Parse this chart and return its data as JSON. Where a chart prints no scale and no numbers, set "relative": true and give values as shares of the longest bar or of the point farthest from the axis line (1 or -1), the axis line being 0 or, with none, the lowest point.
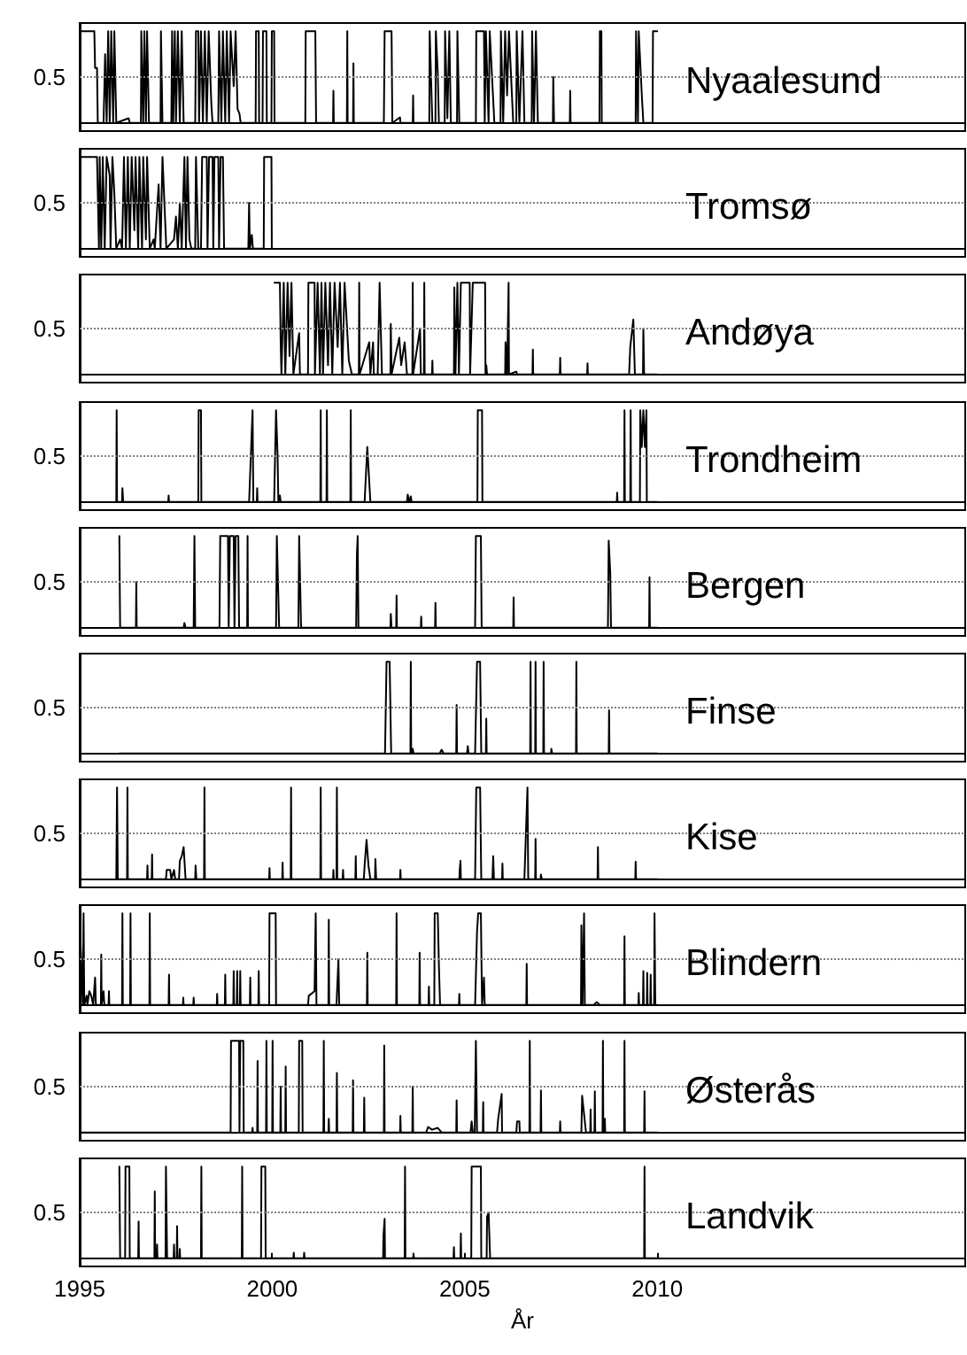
{
  "chart_data": [
    {
      "type": "line",
      "title": "Nyaalesund",
      "color": "#000000",
      "xlim": [
        1995,
        2018
      ],
      "xticks": [
        1995,
        2000,
        2005,
        2010
      ],
      "relative": true,
      "ref_lines": [
        {
          "axis": "y",
          "value": 0.5,
          "label": "0.5",
          "color": "#808080",
          "line_style": "dotted"
        }
      ],
      "tick_labels": "y",
      "x": [
        1995.0,
        1995.38,
        1995.4,
        1995.45,
        1995.47,
        1995.62,
        1995.66,
        1995.7,
        1995.74,
        1995.78,
        1995.82,
        1995.87,
        1995.9,
        1995.95,
        1996.27,
        1996.3,
        1996.59,
        1996.6,
        1996.65,
        1996.68,
        1996.72,
        1996.75,
        1996.8,
        1997.1,
        1997.11,
        1997.14,
        1997.15,
        1997.38,
        1997.4,
        1997.43,
        1997.47,
        1997.5,
        1997.55,
        1997.6,
        1997.65,
        1997.7,
        1998.0,
        1998.02,
        1998.08,
        1998.1,
        1998.15,
        1998.2,
        1998.25,
        1998.3,
        1998.35,
        1998.42,
        1998.45,
        1998.6,
        1998.62,
        1998.68,
        1998.72,
        1998.78,
        1998.82,
        1998.88,
        1998.92,
        1999.0,
        1999.05,
        1999.1,
        1999.15,
        1999.18,
        1999.57,
        1999.58,
        1999.65,
        1999.66,
        1999.75,
        1999.76,
        1999.85,
        1999.86,
        1999.98,
        1999.99,
        2000.05,
        2000.06,
        2000.86,
        2000.87,
        2001.12,
        2001.14,
        2001.58,
        2001.59,
        2001.6,
        2001.94,
        2001.95,
        2001.96,
        2002.1,
        2002.11,
        2002.12,
        2002.9,
        2002.92,
        2003.1,
        2003.12,
        2003.32,
        2003.33,
        2003.65,
        2003.66,
        2003.67,
        2004.08,
        2004.09,
        2004.16,
        2004.24,
        2004.25,
        2004.3,
        2004.33,
        2004.48,
        2004.49,
        2004.55,
        2004.6,
        2004.64,
        2004.8,
        2004.81,
        2004.86,
        2005.29,
        2005.3,
        2005.5,
        2005.52,
        2005.55,
        2005.62,
        2005.65,
        2005.77,
        2005.93,
        2005.94,
        2006.0,
        2006.05,
        2006.1,
        2006.15,
        2006.26,
        2006.34,
        2006.35,
        2006.42,
        2006.5,
        2006.55,
        2006.74,
        2006.75,
        2006.8,
        2006.85,
        2006.9,
        2007.29,
        2007.3,
        2007.32,
        2007.73,
        2007.74,
        2007.75,
        2008.5,
        2008.51,
        2008.55,
        2008.56,
        2009.44,
        2009.45,
        2009.5,
        2009.52,
        2009.6,
        2009.64,
        2009.88,
        2009.89,
        2010.0
      ],
      "values": [
        1,
        1,
        0.6,
        0.6,
        0,
        0,
        0.75,
        0,
        1,
        0,
        1,
        0,
        1,
        0,
        0.05,
        0,
        0,
        1,
        0,
        1,
        0,
        1,
        0,
        0,
        1,
        1,
        0,
        0,
        1,
        0,
        1,
        0,
        1,
        0,
        1,
        0,
        0,
        1,
        1,
        0,
        1,
        0,
        1,
        0,
        1,
        0.2,
        0,
        0,
        1,
        0,
        1,
        0,
        1,
        0,
        1,
        0.4,
        1,
        0.15,
        0.1,
        0,
        0,
        1,
        1,
        0,
        0,
        1,
        1,
        0,
        0,
        1,
        1,
        0,
        0,
        1,
        1,
        0,
        0,
        0.35,
        0,
        0,
        1,
        0,
        0,
        0.65,
        0,
        0,
        1,
        1,
        0,
        0.06,
        0,
        0,
        0.3,
        0,
        0,
        1,
        0,
        0,
        1,
        0.55,
        0,
        0,
        1,
        0.05,
        1,
        0,
        0,
        1,
        0,
        0,
        1,
        1,
        0,
        1,
        0,
        1,
        0,
        0,
        1,
        0,
        1,
        0.3,
        1,
        0,
        0,
        1,
        0,
        1,
        0,
        0,
        1,
        0,
        1,
        0,
        0,
        0.5,
        0,
        0,
        0.35,
        0,
        0,
        1,
        1,
        0,
        0,
        1,
        0,
        1,
        0.3,
        0,
        0,
        1,
        1
      ]
    },
    {
      "type": "line",
      "title": "Tromsø",
      "color": "#000000",
      "xlim": [
        1995,
        2018
      ],
      "xticks": [
        1995,
        2000,
        2005,
        2010
      ],
      "relative": true,
      "ref_lines": [
        {
          "axis": "y",
          "value": 0.5,
          "label": "0.5",
          "color": "#808080",
          "line_style": "dotted"
        }
      ],
      "tick_labels": "y",
      "x": [
        1995.0,
        1995.45,
        1995.5,
        1995.52,
        1995.56,
        1995.6,
        1995.65,
        1995.7,
        1995.78,
        1995.8,
        1995.85,
        1995.9,
        1995.95,
        1996.05,
        1996.1,
        1996.15,
        1996.2,
        1996.25,
        1996.3,
        1996.35,
        1996.42,
        1996.45,
        1996.52,
        1996.55,
        1996.62,
        1996.65,
        1996.72,
        1996.75,
        1996.82,
        1996.92,
        1996.95,
        1997.05,
        1997.1,
        1997.15,
        1997.2,
        1997.25,
        1997.45,
        1997.5,
        1997.55,
        1997.6,
        1997.65,
        1997.72,
        1997.76,
        1997.8,
        1997.85,
        1997.9,
        1998.0,
        1998.02,
        1998.08,
        1998.15,
        1998.18,
        1998.3,
        1998.32,
        1998.36,
        1998.45,
        1998.47,
        1998.5,
        1998.6,
        1998.62,
        1998.66,
        1998.72,
        1998.75,
        1999.38,
        1999.4,
        1999.42,
        1999.47,
        1999.5,
        1999.78,
        1999.79,
        1999.98,
        1999.99
      ],
      "values": [
        1,
        1,
        0,
        1,
        0,
        1,
        0,
        1,
        0.8,
        0,
        1,
        0.6,
        0,
        0.1,
        0,
        1,
        0,
        1,
        0,
        1,
        0.2,
        1,
        0,
        1,
        0,
        1,
        0.1,
        1,
        0,
        0.1,
        0,
        0.7,
        0,
        1,
        0.5,
        0,
        0.1,
        0.35,
        0,
        0.5,
        0,
        1,
        0,
        1,
        0.1,
        0,
        0,
        1,
        0,
        0,
        1,
        1,
        0,
        1,
        1,
        0,
        1,
        1,
        0,
        1,
        1,
        0,
        0,
        0.5,
        0,
        0.15,
        0,
        0,
        1,
        1,
        0
      ]
    },
    {
      "type": "line",
      "title": "Andøya",
      "color": "#000000",
      "xlim": [
        1995,
        2018
      ],
      "xticks": [
        1995,
        2000,
        2005,
        2010
      ],
      "relative": true,
      "ref_lines": [
        {
          "axis": "y",
          "value": 0.5,
          "label": "0.5",
          "color": "#808080",
          "line_style": "dotted"
        }
      ],
      "tick_labels": "y",
      "x": [
        2000.06,
        2000.2,
        2000.22,
        2000.24,
        2000.3,
        2000.34,
        2000.4,
        2000.45,
        2000.5,
        2000.55,
        2000.7,
        2000.72,
        2000.93,
        2000.94,
        2001.1,
        2001.11,
        2001.18,
        2001.24,
        2001.28,
        2001.32,
        2001.38,
        2001.45,
        2001.5,
        2001.56,
        2001.62,
        2001.7,
        2001.76,
        2001.82,
        2001.88,
        2001.99,
        2002.07,
        2002.25,
        2002.26,
        2002.27,
        2002.52,
        2002.55,
        2002.62,
        2002.64,
        2002.74,
        2002.79,
        2002.85,
        2003.07,
        2003.08,
        2003.1,
        2003.2,
        2003.3,
        2003.35,
        2003.44,
        2003.5,
        2003.64,
        2003.65,
        2003.66,
        2003.84,
        2003.86,
        2003.94,
        2003.95,
        2003.96,
        2004.15,
        2004.16,
        2004.17,
        2004.72,
        2004.73,
        2004.76,
        2004.81,
        2004.85,
        2004.9,
        2005.13,
        2005.14,
        2005.21,
        2005.53,
        2005.54,
        2005.56,
        2005.58,
        2006.05,
        2006.06,
        2006.1,
        2006.13,
        2006.14,
        2006.15,
        2006.34,
        2006.36,
        2006.76,
        2006.77,
        2006.78,
        2007.47,
        2007.48,
        2007.49,
        2008.18,
        2008.19,
        2008.2,
        2009.27,
        2009.3,
        2009.38,
        2009.42,
        2009.63,
        2009.64,
        2009.66,
        2010.0
      ],
      "values": [
        1,
        1,
        0.35,
        0,
        1,
        0,
        1,
        0.2,
        1,
        0,
        0.45,
        0,
        0,
        1,
        1,
        0,
        1,
        0,
        1,
        0,
        1,
        0.1,
        1,
        0,
        1,
        0.3,
        1,
        0,
        1,
        0.15,
        0,
        0,
        1,
        0,
        0.35,
        0,
        0.35,
        0,
        0,
        1,
        0,
        0,
        0.55,
        0,
        0.2,
        0.4,
        0.1,
        0.35,
        0,
        0,
        1,
        0,
        0.5,
        0,
        0,
        1,
        0,
        0,
        0.15,
        0,
        0,
        0.95,
        0,
        1,
        0,
        1,
        1,
        0,
        1,
        1,
        0,
        0.1,
        0,
        0,
        0.35,
        0,
        0,
        1,
        0,
        0.03,
        0,
        0,
        0.27,
        0,
        0,
        0.18,
        0,
        0,
        0.12,
        0,
        0,
        0.3,
        0.6,
        0,
        0,
        0.5,
        0,
        0
      ]
    },
    {
      "type": "line",
      "title": "Trondheim",
      "color": "#000000",
      "xlim": [
        1995,
        2018
      ],
      "xticks": [
        1995,
        2000,
        2005,
        2010
      ],
      "relative": true,
      "ref_lines": [
        {
          "axis": "y",
          "value": 0.5,
          "label": "0.5",
          "color": "#808080",
          "line_style": "dotted"
        }
      ],
      "tick_labels": "y",
      "x": [
        1995.95,
        1995.96,
        1995.97,
        1996.1,
        1996.11,
        1996.13,
        1997.3,
        1997.31,
        1997.32,
        1998.08,
        1998.09,
        1998.15,
        1998.16,
        1999.4,
        1999.49,
        1999.51,
        1999.6,
        1999.61,
        1999.62,
        2000.05,
        2000.1,
        2000.14,
        2000.16,
        2000.2,
        2000.22,
        2001.25,
        2001.26,
        2001.27,
        2001.41,
        2001.42,
        2001.43,
        2002.03,
        2002.04,
        2002.05,
        2002.4,
        2002.47,
        2002.55,
        2003.5,
        2003.52,
        2003.56,
        2003.6,
        2003.62,
        2005.33,
        2005.34,
        2005.45,
        2005.46,
        2008.95,
        2008.96,
        2008.97,
        2009.14,
        2009.15,
        2009.16,
        2009.3,
        2009.31,
        2009.32,
        2009.55,
        2009.56,
        2009.6,
        2009.64,
        2009.68,
        2009.72,
        2009.73,
        2010.0
      ],
      "values": [
        0,
        1,
        0,
        0,
        0.15,
        0,
        0,
        0.07,
        0,
        0,
        1,
        1,
        0,
        0,
        1,
        0,
        0,
        0.15,
        0,
        0,
        1,
        0.5,
        0,
        0.07,
        0,
        0,
        1,
        0,
        0,
        1,
        0,
        0,
        1,
        0,
        0,
        0.6,
        0,
        0,
        0.08,
        0,
        0.06,
        0,
        0,
        1,
        1,
        0,
        0,
        0.1,
        0,
        0,
        1,
        0,
        0,
        1,
        0,
        0,
        1,
        0.6,
        1,
        0.6,
        1,
        0,
        0
      ]
    },
    {
      "type": "line",
      "title": "Bergen",
      "color": "#000000",
      "xlim": [
        1995,
        2018
      ],
      "xticks": [
        1995,
        2000,
        2005,
        2010
      ],
      "relative": true,
      "ref_lines": [
        {
          "axis": "y",
          "value": 0.5,
          "label": "0.5",
          "color": "#808080",
          "line_style": "dotted"
        }
      ],
      "tick_labels": "y",
      "x": [
        1996.03,
        1996.05,
        1996.46,
        1996.47,
        1996.48,
        1997.7,
        1997.72,
        1997.75,
        1997.96,
        1997.98,
        1998.0,
        1998.63,
        1998.65,
        1998.85,
        1998.87,
        1998.9,
        1999.0,
        1999.02,
        1999.05,
        1999.12,
        1999.14,
        1999.35,
        1999.36,
        1999.37,
        2000.1,
        2000.12,
        2000.18,
        2000.68,
        2000.7,
        2000.75,
        2002.18,
        2002.2,
        2002.22,
        2002.24,
        2003.07,
        2003.08,
        2003.1,
        2003.22,
        2003.23,
        2003.24,
        2003.86,
        2003.87,
        2003.88,
        2004.23,
        2004.24,
        2004.25,
        2005.27,
        2005.29,
        2005.42,
        2005.44,
        2006.26,
        2006.27,
        2006.28,
        2008.72,
        2008.74,
        2008.78,
        2008.8,
        2009.79,
        2009.8,
        2009.81,
        2010.0
      ],
      "values": [
        1,
        0,
        0,
        0.5,
        0,
        0,
        0.05,
        0,
        0,
        1,
        0,
        0,
        1,
        1,
        0,
        1,
        1,
        0,
        1,
        1,
        0,
        0,
        1,
        0,
        0,
        1,
        0,
        0,
        1,
        0,
        0,
        0.8,
        1,
        0,
        0,
        0.15,
        0,
        0,
        0.35,
        0,
        0,
        0.12,
        0,
        0,
        0.27,
        0,
        0,
        1,
        1,
        0,
        0,
        0.33,
        0,
        0,
        0.95,
        0.6,
        0,
        0,
        0.55,
        0,
        0
      ]
    },
    {
      "type": "line",
      "title": "Finse",
      "color": "#000000",
      "xlim": [
        1995,
        2018
      ],
      "xticks": [
        1995,
        2000,
        2005,
        2010
      ],
      "relative": true,
      "ref_lines": [
        {
          "axis": "y",
          "value": 0.5,
          "label": "0.5",
          "color": "#808080",
          "line_style": "dotted"
        }
      ],
      "tick_labels": "y",
      "x": [
        1996.03,
        2002.93,
        2002.97,
        2003.05,
        2003.09,
        2003.59,
        2003.6,
        2003.61,
        2003.65,
        2003.67,
        2004.35,
        2004.4,
        2004.45,
        2004.78,
        2004.79,
        2004.8,
        2005.06,
        2005.08,
        2005.1,
        2005.27,
        2005.32,
        2005.4,
        2005.43,
        2005.55,
        2005.56,
        2005.57,
        2006.7,
        2006.71,
        2006.72,
        2006.83,
        2006.84,
        2006.85,
        2007.04,
        2007.05,
        2007.06,
        2007.24,
        2007.25,
        2007.27,
        2007.89,
        2007.9,
        2007.91,
        2008.74,
        2008.75,
        2008.76,
        2010.0
      ],
      "values": [
        0,
        0,
        1,
        1,
        0,
        0,
        1,
        0,
        0.05,
        0,
        0,
        0.04,
        0,
        0,
        0.53,
        0,
        0,
        0.08,
        0,
        0,
        1,
        1,
        0,
        0,
        0.38,
        0,
        0,
        1,
        0,
        0,
        1,
        0,
        0,
        1,
        0,
        0,
        0.05,
        0,
        0,
        1,
        0,
        0,
        0.47,
        0,
        0
      ]
    },
    {
      "type": "line",
      "title": "Kise",
      "color": "#000000",
      "xlim": [
        1995,
        2018
      ],
      "xticks": [
        1995,
        2000,
        2005,
        2010
      ],
      "relative": true,
      "ref_lines": [
        {
          "axis": "y",
          "value": 0.5,
          "label": "0.5",
          "color": "#808080",
          "line_style": "dotted"
        }
      ],
      "tick_labels": "y",
      "x": [
        1995.95,
        1995.97,
        1995.99,
        1996.23,
        1996.24,
        1996.25,
        1996.75,
        1996.76,
        1996.77,
        1996.87,
        1996.88,
        1996.89,
        1997.24,
        1997.26,
        1997.35,
        1997.38,
        1997.45,
        1997.48,
        1997.58,
        1997.6,
        1997.65,
        1997.7,
        1997.75,
        1998.0,
        1998.01,
        1998.03,
        1998.23,
        1998.24,
        1998.25,
        1999.92,
        1999.93,
        1999.94,
        2000.26,
        2000.27,
        2000.28,
        2000.48,
        2000.49,
        2000.5,
        2001.25,
        2001.26,
        2001.27,
        2001.58,
        2001.59,
        2001.6,
        2001.67,
        2001.68,
        2001.69,
        2001.83,
        2001.84,
        2001.85,
        2002.16,
        2002.17,
        2002.18,
        2002.38,
        2002.4,
        2002.45,
        2002.5,
        2002.55,
        2002.67,
        2002.68,
        2002.7,
        2003.32,
        2003.33,
        2003.34,
        2004.86,
        2004.87,
        2004.89,
        2004.9,
        2005.27,
        2005.3,
        2005.4,
        2005.43,
        2005.72,
        2005.74,
        2005.76,
        2005.97,
        2005.98,
        2005.99,
        2006.55,
        2006.63,
        2006.65,
        2006.83,
        2006.84,
        2006.85,
        2006.97,
        2006.98,
        2007.0,
        2008.45,
        2008.46,
        2008.47,
        2009.43,
        2009.44,
        2009.45,
        2010.0
      ],
      "values": [
        0,
        1,
        0,
        0,
        1,
        0,
        0,
        0.15,
        0,
        0,
        0.27,
        0,
        0,
        0.1,
        0.1,
        0,
        0.1,
        0,
        0,
        0.2,
        0.25,
        0.35,
        0,
        0,
        0.15,
        0,
        0,
        1,
        0,
        0,
        0.12,
        0,
        0,
        0.18,
        0,
        0,
        1,
        0,
        0,
        1,
        0,
        0,
        0.1,
        0,
        0,
        1,
        0,
        0,
        0.1,
        0,
        0,
        0.25,
        0,
        0,
        0.15,
        0.43,
        0.15,
        0,
        0,
        0.22,
        0,
        0,
        0.1,
        0,
        0,
        0.1,
        0.2,
        0,
        0,
        1,
        1,
        0,
        0,
        0.25,
        0,
        0,
        0.17,
        0,
        0,
        1,
        0,
        0,
        0.44,
        0,
        0,
        0.05,
        0,
        0,
        0.35,
        0,
        0,
        0.19,
        0,
        0
      ]
    },
    {
      "type": "line",
      "title": "Blindern",
      "color": "#000000",
      "xlim": [
        1995,
        2018
      ],
      "xticks": [
        1995,
        2000,
        2005,
        2010
      ],
      "relative": true,
      "ref_lines": [
        {
          "axis": "y",
          "value": 0.5,
          "label": "0.5",
          "color": "#808080",
          "line_style": "dotted"
        }
      ],
      "tick_labels": "y",
      "x": [
        1995.0,
        1995.02,
        1995.05,
        1995.08,
        1995.1,
        1995.12,
        1995.18,
        1995.2,
        1995.25,
        1995.3,
        1995.35,
        1995.4,
        1995.42,
        1995.55,
        1995.56,
        1995.57,
        1995.62,
        1995.64,
        1995.75,
        1995.76,
        1995.77,
        1996.1,
        1996.11,
        1996.12,
        1996.31,
        1996.32,
        1996.33,
        1996.81,
        1996.82,
        1996.83,
        1997.31,
        1997.32,
        1997.33,
        1997.68,
        1997.69,
        1997.7,
        1997.95,
        1997.96,
        1997.97,
        1998.56,
        1998.57,
        1998.58,
        1998.77,
        1998.78,
        1998.79,
        1998.99,
        1999.0,
        1999.01,
        1999.08,
        1999.09,
        1999.1,
        1999.16,
        1999.17,
        1999.18,
        1999.42,
        1999.43,
        1999.44,
        1999.64,
        1999.65,
        1999.66,
        1999.92,
        1999.93,
        2000.09,
        2000.1,
        2000.93,
        2000.95,
        2001.1,
        2001.13,
        2001.15,
        2001.46,
        2001.47,
        2001.48,
        2001.67,
        2001.72,
        2001.74,
        2002.46,
        2002.47,
        2002.48,
        2003.22,
        2003.23,
        2003.24,
        2003.82,
        2003.83,
        2003.84,
        2004.06,
        2004.07,
        2004.08,
        2004.21,
        2004.22,
        2004.3,
        2004.33,
        2004.36,
        2004.85,
        2004.86,
        2004.87,
        2005.27,
        2005.32,
        2005.35,
        2005.42,
        2005.45,
        2005.5,
        2005.52,
        2006.6,
        2006.61,
        2006.62,
        2008.02,
        2008.03,
        2008.06,
        2008.1,
        2008.12,
        2008.35,
        2008.43,
        2008.51,
        2009.14,
        2009.15,
        2009.16,
        2009.51,
        2009.52,
        2009.53,
        2009.63,
        2009.64,
        2009.65,
        2009.73,
        2009.74,
        2009.75,
        2009.82,
        2009.83,
        2009.84,
        2009.92,
        2009.93,
        2009.95,
        2010.0
      ],
      "values": [
        0,
        0.7,
        0.7,
        0,
        1,
        0,
        0.1,
        0,
        0.15,
        0.1,
        0,
        0.3,
        0,
        0,
        0.55,
        0,
        0.15,
        0,
        0,
        0.15,
        0,
        0,
        1,
        0,
        0,
        1,
        0,
        0,
        1,
        0,
        0,
        0.33,
        0,
        0,
        0.08,
        0,
        0,
        0.08,
        0,
        0,
        0.12,
        0,
        0,
        0.33,
        0,
        0,
        0.37,
        0,
        0,
        0.37,
        0,
        0,
        0.37,
        0,
        0,
        0.3,
        0,
        0,
        0.37,
        0,
        0,
        1,
        1,
        0,
        0,
        0.1,
        0.15,
        1,
        0,
        0,
        0.93,
        0,
        0,
        0.5,
        0,
        0,
        0.57,
        0,
        0,
        1,
        0,
        0,
        0.57,
        0,
        0,
        0.2,
        0,
        0,
        1,
        1,
        0.43,
        0,
        0,
        0.12,
        0,
        0,
        0.8,
        1,
        1,
        0,
        0.3,
        0,
        0,
        0.45,
        0,
        0,
        0.87,
        0,
        1,
        0,
        0,
        0.03,
        0,
        0,
        0.75,
        0,
        0,
        0.13,
        0,
        0,
        0.37,
        0,
        0,
        0.35,
        0,
        0,
        0.33,
        0,
        0,
        1,
        0,
        0
      ]
    },
    {
      "type": "line",
      "title": "Østerås",
      "color": "#000000",
      "xlim": [
        1995,
        2018
      ],
      "xticks": [
        1995,
        2000,
        2005,
        2010
      ],
      "relative": true,
      "ref_lines": [
        {
          "axis": "y",
          "value": 0.5,
          "label": "0.5",
          "color": "#808080",
          "line_style": "dotted"
        }
      ],
      "tick_labels": "y",
      "x": [
        1995.0,
        1998.92,
        1998.93,
        1999.14,
        1999.15,
        1999.17,
        1999.25,
        1999.26,
        1999.48,
        1999.49,
        1999.5,
        1999.61,
        1999.62,
        1999.63,
        1999.84,
        1999.85,
        1999.86,
        2000.0,
        2000.01,
        2000.02,
        2000.21,
        2000.22,
        2000.23,
        2000.34,
        2000.35,
        2000.36,
        2000.69,
        2000.7,
        2000.78,
        2000.79,
        2001.33,
        2001.34,
        2001.35,
        2001.46,
        2001.47,
        2001.48,
        2001.67,
        2001.68,
        2001.69,
        2002.09,
        2002.1,
        2002.11,
        2002.38,
        2002.39,
        2002.4,
        2002.9,
        2002.91,
        2002.92,
        2003.32,
        2003.33,
        2003.34,
        2003.64,
        2003.65,
        2003.66,
        2004.0,
        2004.05,
        2004.15,
        2004.3,
        2004.4,
        2004.78,
        2004.79,
        2004.8,
        2005.15,
        2005.18,
        2005.21,
        2005.26,
        2005.29,
        2005.32,
        2005.47,
        2005.48,
        2005.49,
        2005.84,
        2005.87,
        2005.96,
        2005.97,
        2006.34,
        2006.36,
        2006.42,
        2006.43,
        2006.68,
        2006.69,
        2006.7,
        2006.97,
        2006.98,
        2006.99,
        2007.47,
        2007.48,
        2007.49,
        2008.03,
        2008.05,
        2008.15,
        2008.26,
        2008.27,
        2008.28,
        2008.37,
        2008.38,
        2008.39,
        2008.58,
        2008.59,
        2008.6,
        2008.64,
        2008.65,
        2009.14,
        2009.15,
        2009.16,
        2009.66,
        2009.67,
        2009.68,
        2010.0
      ],
      "values": [
        0,
        0,
        1,
        1,
        0,
        1,
        1,
        0,
        0,
        0.05,
        0,
        0,
        0.78,
        0,
        0,
        1,
        0,
        0,
        1,
        0,
        0,
        0.5,
        0,
        0,
        0.72,
        0,
        0,
        1,
        1,
        0,
        0,
        1,
        0,
        0,
        0.15,
        0,
        0,
        0.65,
        0,
        0,
        0.57,
        0,
        0,
        0.38,
        0,
        0,
        0.95,
        0,
        0,
        0.18,
        0,
        0,
        0.5,
        0,
        0,
        0.06,
        0.03,
        0.05,
        0,
        0,
        0.35,
        0,
        0,
        0.12,
        0,
        0,
        1,
        0,
        0,
        0.33,
        0,
        0,
        0.15,
        0.42,
        0,
        0,
        0.12,
        0.12,
        0,
        0,
        1,
        0,
        0,
        0.46,
        0,
        0,
        0.12,
        0,
        0,
        0.4,
        0,
        0,
        0.25,
        0,
        0,
        0.45,
        0,
        0,
        1,
        0,
        0.15,
        0,
        0,
        1,
        0,
        0,
        0.45,
        0,
        0
      ]
    },
    {
      "type": "line",
      "title": "Landvik",
      "color": "#000000",
      "xlim": [
        1995,
        2018
      ],
      "xticks": [
        1995,
        2000,
        2005,
        2010
      ],
      "relative": true,
      "ref_lines": [
        {
          "axis": "y",
          "value": 0.5,
          "label": "0.5",
          "color": "#808080",
          "line_style": "dotted"
        }
      ],
      "xlabel": "År",
      "x": [
        1996.03,
        1996.05,
        1996.18,
        1996.19,
        1996.29,
        1996.3,
        1996.52,
        1996.53,
        1996.54,
        1996.94,
        1996.95,
        1996.96,
        1997.0,
        1997.01,
        1997.02,
        1997.23,
        1997.24,
        1997.27,
        1997.44,
        1997.45,
        1997.46,
        1997.52,
        1997.53,
        1997.54,
        1997.59,
        1997.6,
        1997.61,
        1998.15,
        1998.16,
        1998.17,
        1999.21,
        1999.22,
        1999.23,
        1999.71,
        1999.72,
        1999.82,
        1999.83,
        2000.55,
        2000.56,
        2000.57,
        2000.82,
        2000.83,
        2000.84,
        2002.88,
        2002.89,
        2002.92,
        2002.93,
        2003.44,
        2003.45,
        2003.46,
        2003.66,
        2003.67,
        2003.68,
        2004.71,
        2004.72,
        2004.73,
        2004.89,
        2004.9,
        2004.91,
        2005.17,
        2005.18,
        2005.42,
        2005.43,
        2005.57,
        2005.58,
        2005.62,
        2005.66,
        2009.66,
        2009.67,
        2009.68,
        2010.0
      ],
      "values": [
        1,
        0,
        0,
        1,
        1,
        0,
        0,
        0.4,
        0,
        0,
        0.73,
        0,
        0,
        0.15,
        0,
        0,
        1,
        0,
        0,
        0.15,
        0,
        0,
        0.35,
        0,
        0,
        0.1,
        0,
        0,
        1,
        0,
        0,
        1,
        0,
        0,
        1,
        1,
        0,
        0,
        0.06,
        0,
        0,
        0.06,
        0,
        0,
        0.25,
        0.43,
        0,
        0,
        1,
        0,
        0,
        0.05,
        0,
        0,
        0.12,
        0,
        0,
        0.27,
        0,
        0,
        1,
        1,
        0,
        0,
        0.45,
        0.5,
        0,
        0,
        1,
        0,
        0
      ]
    }
  ]
}
